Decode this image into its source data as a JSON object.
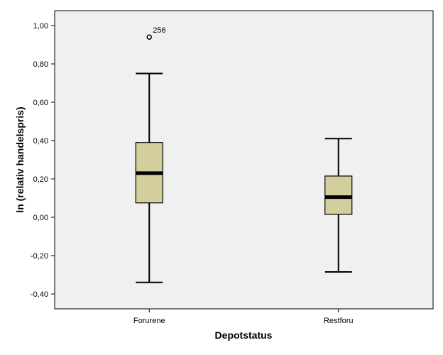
{
  "chart_data": {
    "type": "boxplot",
    "xlabel": "Depotstatus",
    "ylabel": "ln (relativ handelspris)",
    "ylim": [
      -0.47,
      1.07
    ],
    "y_ticks": [
      -0.4,
      -0.2,
      0.0,
      0.2,
      0.4,
      0.6,
      0.8,
      1.0
    ],
    "y_tick_labels": [
      "-0,40",
      "-0,20",
      "0,00",
      "0,20",
      "0,40",
      "0,60",
      "0,80",
      "1,00"
    ],
    "grid": false,
    "categories": [
      "Forurene",
      "Restforu"
    ],
    "boxes": [
      {
        "category": "Forurene",
        "whisker_low": -0.34,
        "q1": 0.075,
        "median": 0.23,
        "q3": 0.39,
        "whisker_high": 0.75,
        "outliers": [
          {
            "value": 0.94,
            "label": "256"
          }
        ]
      },
      {
        "category": "Restforu",
        "whisker_low": -0.285,
        "q1": 0.015,
        "median": 0.105,
        "q3": 0.215,
        "whisker_high": 0.41,
        "outliers": []
      }
    ],
    "colors": {
      "box_fill": "#d3cf9c",
      "plot_bg": "#f0f0f0",
      "stroke": "#000000"
    }
  }
}
